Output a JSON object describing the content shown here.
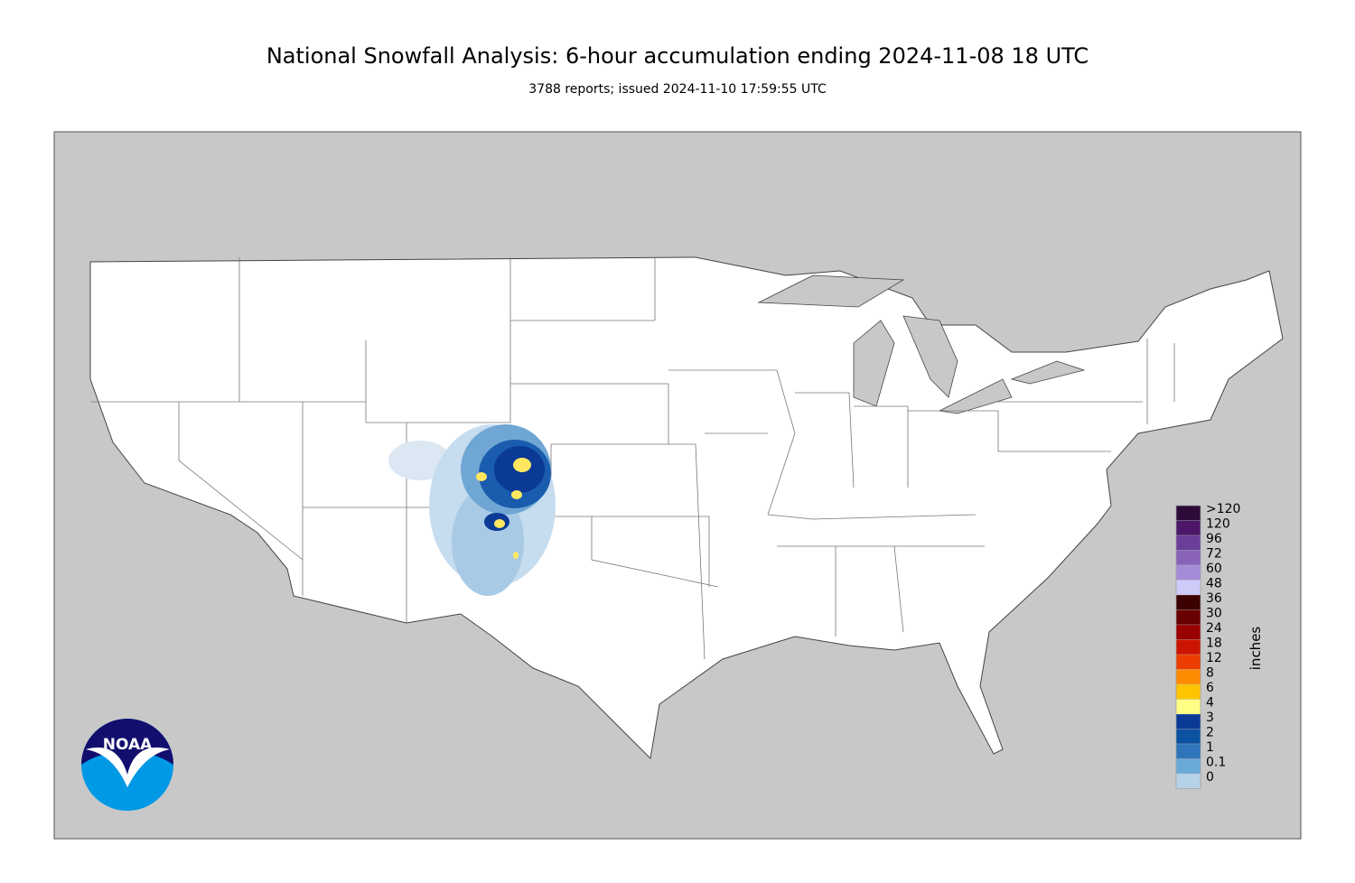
{
  "header": {
    "title": "National Snowfall Analysis: 6-hour accumulation ending 2024-11-08 18 UTC",
    "subtitle": "3788 reports; issued 2024-11-10 17:59:55 UTC"
  },
  "logo": {
    "text": "NOAA"
  },
  "legend": {
    "title": "inches",
    "items": [
      {
        "label": ">120",
        "color": "#2c0b3b"
      },
      {
        "label": "120",
        "color": "#4c1768"
      },
      {
        "label": "96",
        "color": "#6b3e9b"
      },
      {
        "label": "72",
        "color": "#8963b9"
      },
      {
        "label": "60",
        "color": "#a58cd8"
      },
      {
        "label": "48",
        "color": "#cfcbf8"
      },
      {
        "label": "36",
        "color": "#3b0000"
      },
      {
        "label": "30",
        "color": "#680000"
      },
      {
        "label": "24",
        "color": "#990000"
      },
      {
        "label": "18",
        "color": "#cc1400"
      },
      {
        "label": "12",
        "color": "#ec3c00"
      },
      {
        "label": "8",
        "color": "#ff8c00"
      },
      {
        "label": "6",
        "color": "#ffc400"
      },
      {
        "label": "4",
        "color": "#ffff86"
      },
      {
        "label": "3",
        "color": "#0b3a96"
      },
      {
        "label": "2",
        "color": "#0d52a2"
      },
      {
        "label": "1",
        "color": "#2e75bb"
      },
      {
        "label": "0.1",
        "color": "#6aaad8"
      },
      {
        "label": "0",
        "color": "#b6d2e6"
      }
    ]
  }
}
